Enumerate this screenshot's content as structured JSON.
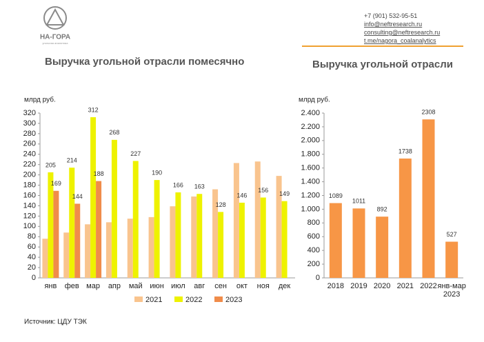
{
  "header": {
    "logo": "НА-ГОРА",
    "logo_sub": "угольная аналитика",
    "contacts": [
      "+7 (901) 532-95-51",
      "info@neftresearch.ru",
      "consulting@neftresearch.ru",
      "t.me/nagora_coalanalytics"
    ]
  },
  "source": "Источник: ЦДУ ТЭК",
  "chart_data": [
    {
      "type": "grouped_bar",
      "title": "Выручка угольной отрасли помесячно",
      "y_label": "млрд руб.",
      "grid": false,
      "categories": [
        "янв",
        "фев",
        "мар",
        "апр",
        "май",
        "июн",
        "июл",
        "авг",
        "сен",
        "окт",
        "ноя",
        "дек"
      ],
      "series": [
        {
          "name": "2021",
          "color": "#f9c48e",
          "show_labels": false,
          "values": [
            76,
            88,
            104,
            108,
            115,
            118,
            139,
            158,
            172,
            223,
            226,
            198
          ]
        },
        {
          "name": "2022",
          "color": "#eef200",
          "show_labels": true,
          "values": [
            205,
            214,
            312,
            268,
            227,
            190,
            166,
            163,
            128,
            146,
            156,
            149
          ]
        },
        {
          "name": "2023",
          "color": "#f08c4a",
          "show_labels": true,
          "values": [
            169,
            144,
            188,
            null,
            null,
            null,
            null,
            null,
            null,
            null,
            null,
            null
          ]
        }
      ],
      "ylim": [
        0,
        320
      ],
      "yticks": [
        0,
        20,
        40,
        60,
        80,
        100,
        120,
        140,
        160,
        180,
        200,
        220,
        240,
        260,
        280,
        300,
        320
      ]
    },
    {
      "type": "bar",
      "title": "Выручка угольной отрасли",
      "y_label": "млрд руб.",
      "grid": false,
      "color": "#f79646",
      "show_labels": true,
      "categories": [
        "2018",
        "2019",
        "2020",
        "2021",
        "2022",
        "янв-мар 2023"
      ],
      "values": [
        1089,
        1011,
        892,
        1738,
        2308,
        527
      ],
      "ylim": [
        0,
        2400
      ],
      "yticks": [
        0,
        200,
        400,
        600,
        800,
        {
          "value": 1000,
          "label": "1.000"
        },
        {
          "value": 1200,
          "label": "1.200"
        },
        {
          "value": 1400,
          "label": "1.400"
        },
        {
          "value": 1600,
          "label": "1.600"
        },
        {
          "value": 1800,
          "label": "1.800"
        },
        {
          "value": 2000,
          "label": "2.000"
        },
        {
          "value": 2200,
          "label": "2.200"
        },
        {
          "value": 2400,
          "label": "2.400"
        }
      ]
    }
  ]
}
